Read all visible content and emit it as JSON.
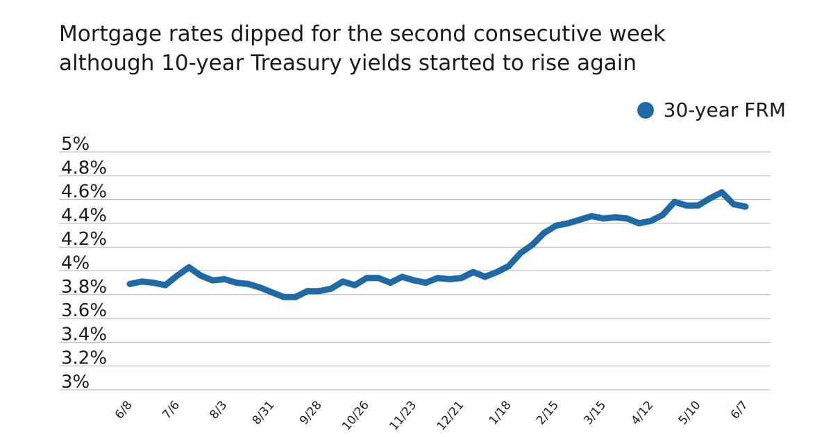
{
  "title_lines": [
    "Mortgage rates dipped for the second consecutive week",
    "although 10-year Treasury yields started to rise again"
  ],
  "chart_data": {
    "type": "line",
    "title": "Mortgage rates dipped for the second consecutive week although 10-year Treasury yields started to rise again",
    "xlabel": "",
    "ylabel": "",
    "ylim": [
      3,
      5
    ],
    "y_ticks": [
      3,
      3.2,
      3.4,
      3.6,
      3.8,
      4,
      4.2,
      4.4,
      4.6,
      4.8,
      5
    ],
    "y_tick_labels": [
      "3%",
      "3.2%",
      "3.4%",
      "3.6%",
      "3.8%",
      "4%",
      "4.2%",
      "4.4%",
      "4.6%",
      "4.8%",
      "5%"
    ],
    "x_tick_labels": [
      "6/8",
      "7/6",
      "8/3",
      "8/31",
      "9/28",
      "10/26",
      "11/23",
      "12/21",
      "1/18",
      "2/15",
      "3/15",
      "4/12",
      "5/10",
      "6/7"
    ],
    "x_tick_every": 4,
    "grid": true,
    "legend_position": "top-right",
    "series": [
      {
        "name": "30-year FRM",
        "color": "#1f6aa5",
        "values": [
          3.89,
          3.91,
          3.9,
          3.88,
          3.96,
          4.03,
          3.96,
          3.92,
          3.93,
          3.9,
          3.89,
          3.86,
          3.82,
          3.78,
          3.78,
          3.83,
          3.83,
          3.85,
          3.91,
          3.88,
          3.94,
          3.94,
          3.9,
          3.95,
          3.92,
          3.9,
          3.94,
          3.93,
          3.94,
          3.99,
          3.95,
          3.99,
          4.04,
          4.15,
          4.22,
          4.32,
          4.38,
          4.4,
          4.43,
          4.46,
          4.44,
          4.45,
          4.44,
          4.4,
          4.42,
          4.47,
          4.58,
          4.55,
          4.55,
          4.61,
          4.66,
          4.56,
          4.54
        ]
      }
    ]
  }
}
